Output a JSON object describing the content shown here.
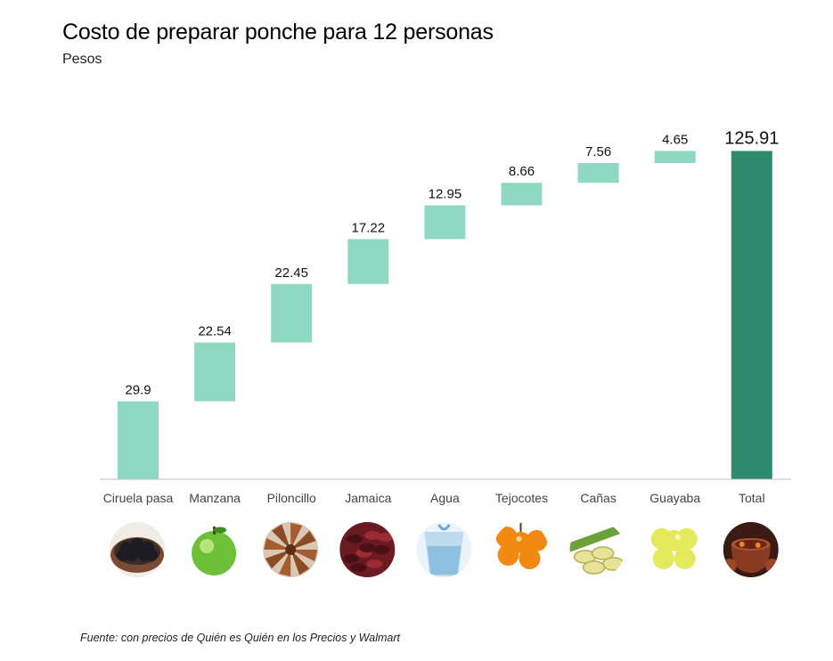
{
  "chart_data": {
    "type": "bar",
    "subtype": "waterfall",
    "title": "Costo de preparar ponche para 12 personas",
    "subtitle": "Pesos",
    "categories": [
      "Ciruela pasa",
      "Manzana",
      "Piloncillo",
      "Jamaica",
      "Agua",
      "Tejocotes",
      "Cañas",
      "Guayaba",
      "Total"
    ],
    "values": [
      29.9,
      22.54,
      22.45,
      17.22,
      12.95,
      8.66,
      7.56,
      4.65,
      125.91
    ],
    "value_labels": [
      "29.9",
      "22.54",
      "22.45",
      "17.22",
      "12.95",
      "8.66",
      "7.56",
      "4.65",
      "125.91"
    ],
    "total_index": 8,
    "ylim": [
      0,
      130
    ],
    "xlabel": "",
    "ylabel": "",
    "grid": false,
    "colors": {
      "step": "#8fd8c3",
      "total": "#2e8b6e",
      "axis": "#bfbfbf"
    },
    "icons": [
      "prunes-icon",
      "apple-icon",
      "piloncillo-icon",
      "hibiscus-icon",
      "water-icon",
      "tejocote-icon",
      "sugarcane-icon",
      "guava-icon",
      "ponche-pot-icon"
    ],
    "source": "Fuente: con precios de Quién es Quién en los Precios y Walmart"
  }
}
